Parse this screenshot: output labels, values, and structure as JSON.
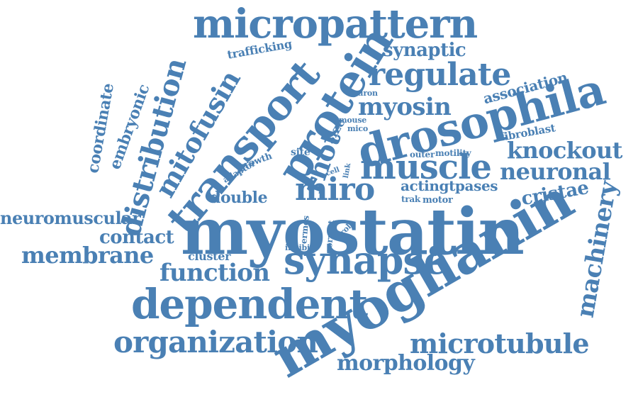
{
  "cloud": {
    "color": "#4a80b4",
    "words": [
      "myostatin",
      "myoglianin",
      "drosophila",
      "protein",
      "transport",
      "micropattern",
      "synapse",
      "dependent",
      "muscle",
      "distribution",
      "mitofusin",
      "regulate",
      "organization",
      "microtubule",
      "morphology",
      "membrane",
      "miro",
      "neuronal",
      "knockout",
      "myosin",
      "function",
      "machinery",
      "neuromuscular",
      "contact",
      "rhot",
      "cristae",
      "coordinate",
      "embryonic",
      "synaptic",
      "association",
      "double",
      "actingtpases",
      "trafficking",
      "fibroblast",
      "cluster",
      "size",
      "neuron",
      "mouse",
      "mico",
      "site",
      "growth",
      "adaptor",
      "outer",
      "motility",
      "cell",
      "link",
      "trak",
      "motor",
      "ermes",
      "role",
      "correct",
      "inhibit"
    ]
  }
}
